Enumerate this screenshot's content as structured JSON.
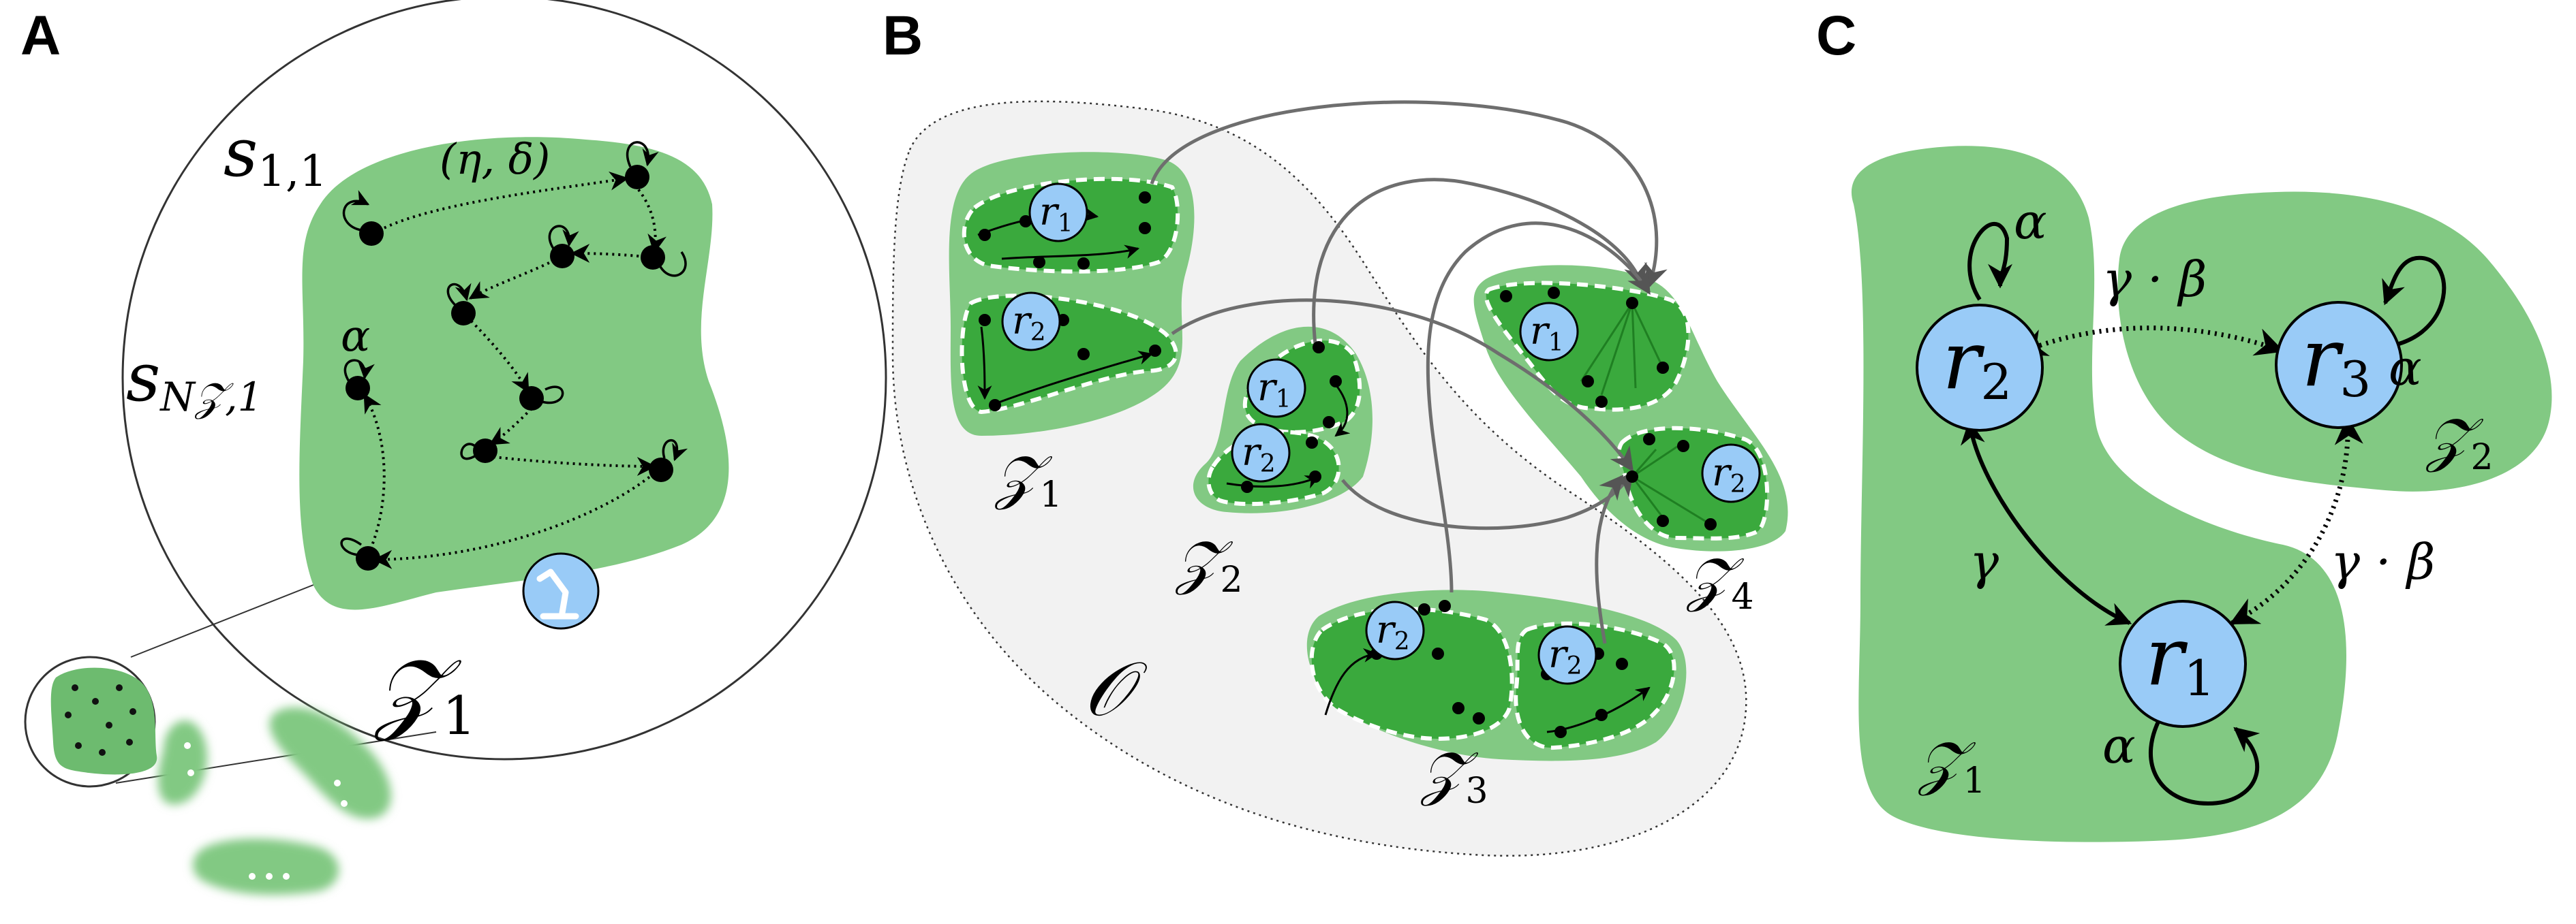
{
  "panels": {
    "a": "A",
    "b": "B",
    "c": "C"
  },
  "panel_a": {
    "zone_label": "𝒵",
    "zone_sub": "1",
    "state_first": "s",
    "state_first_sub": "1,1",
    "state_last": "s",
    "state_last_sub": "N𝒵,1",
    "edge_params": "(η, δ)",
    "self_loop": "α"
  },
  "panel_b": {
    "outer_label": "𝒪",
    "zones": [
      {
        "label": "𝒵",
        "sub": "1"
      },
      {
        "label": "𝒵",
        "sub": "2"
      },
      {
        "label": "𝒵",
        "sub": "3"
      },
      {
        "label": "𝒵",
        "sub": "4"
      }
    ],
    "region": "r",
    "region_subs": [
      "1",
      "2"
    ]
  },
  "panel_c": {
    "nodes": [
      {
        "label": "r",
        "sub": "1"
      },
      {
        "label": "r",
        "sub": "2"
      },
      {
        "label": "r",
        "sub": "3"
      }
    ],
    "zones": [
      {
        "label": "𝒵",
        "sub": "1"
      },
      {
        "label": "𝒵",
        "sub": "2"
      }
    ],
    "edges": {
      "self": "α",
      "r2_r1": "γ",
      "r2_r3": "γ · β",
      "r1_r3": "γ · β"
    }
  },
  "colors": {
    "zone_light": "#82c983",
    "zone_dark": "#3aa93d",
    "region_fill": "#99cbf7",
    "outer_fill": "#f2f2f2"
  }
}
